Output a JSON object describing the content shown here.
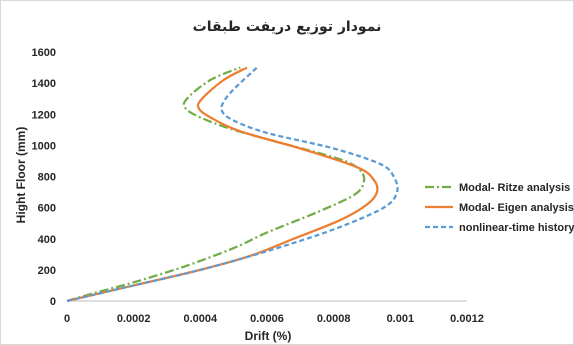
{
  "chart_data": {
    "type": "line",
    "title": "نمودار توزیع دریفت طبقات",
    "xlabel": "Drift (%)",
    "ylabel": "Hight Floor (mm)",
    "xlim": [
      0,
      0.0012
    ],
    "ylim": [
      0,
      1600
    ],
    "xticks": [
      0,
      0.0002,
      0.0004,
      0.0006,
      0.0008,
      0.001,
      0.0012
    ],
    "xtick_labels": [
      "0",
      "0.0002",
      "0.0004",
      "0.0006",
      "0.0008",
      "0.001",
      "0.0012"
    ],
    "yticks": [
      0,
      200,
      400,
      600,
      800,
      1000,
      1200,
      1400,
      1600
    ],
    "ytick_labels": [
      "0",
      "200",
      "400",
      "600",
      "800",
      "1000",
      "1200",
      "1400",
      "1600"
    ],
    "grid": false,
    "legend_position": "right",
    "series": [
      {
        "name": "Modal- Ritze analysis",
        "color": "#70ad47",
        "dash": "dashdot",
        "x": [
          0,
          8e-05,
          0.0002,
          0.00035,
          0.0005,
          0.0006,
          0.00075,
          0.00086,
          0.00089,
          0.00088,
          0.00082,
          0.00067,
          0.0005,
          0.0004,
          0.000355,
          0.00036,
          0.00043,
          0.00052
        ],
        "y": [
          0,
          50,
          120,
          220,
          340,
          440,
          570,
          680,
          760,
          840,
          910,
          1000,
          1100,
          1180,
          1240,
          1300,
          1420,
          1500
        ]
      },
      {
        "name": "Modal- Eigen analysis",
        "color": "#ed7d31",
        "dash": "solid",
        "x": [
          0,
          8e-05,
          0.0002,
          0.0004,
          0.00055,
          0.00068,
          0.00082,
          0.0009,
          0.00093,
          0.00092,
          0.00087,
          0.0007,
          0.00052,
          0.00043,
          0.000395,
          0.000405,
          0.00047,
          0.00054
        ],
        "y": [
          0,
          40,
          100,
          200,
          290,
          400,
          520,
          620,
          700,
          780,
          860,
          980,
          1090,
          1180,
          1240,
          1300,
          1420,
          1500
        ]
      },
      {
        "name": "nonlinear-time history",
        "color": "#5b9bd5",
        "dash": "dashed",
        "x": [
          0,
          8e-05,
          0.0002,
          0.0004,
          0.0006,
          0.0008,
          0.00095,
          0.00099,
          0.00098,
          0.00094,
          0.0008,
          0.0006,
          0.0005,
          0.000465,
          0.00047,
          0.0005,
          0.00057
        ],
        "y": [
          0,
          40,
          100,
          200,
          320,
          460,
          600,
          700,
          800,
          880,
          980,
          1080,
          1160,
          1220,
          1280,
          1360,
          1500
        ]
      }
    ]
  }
}
